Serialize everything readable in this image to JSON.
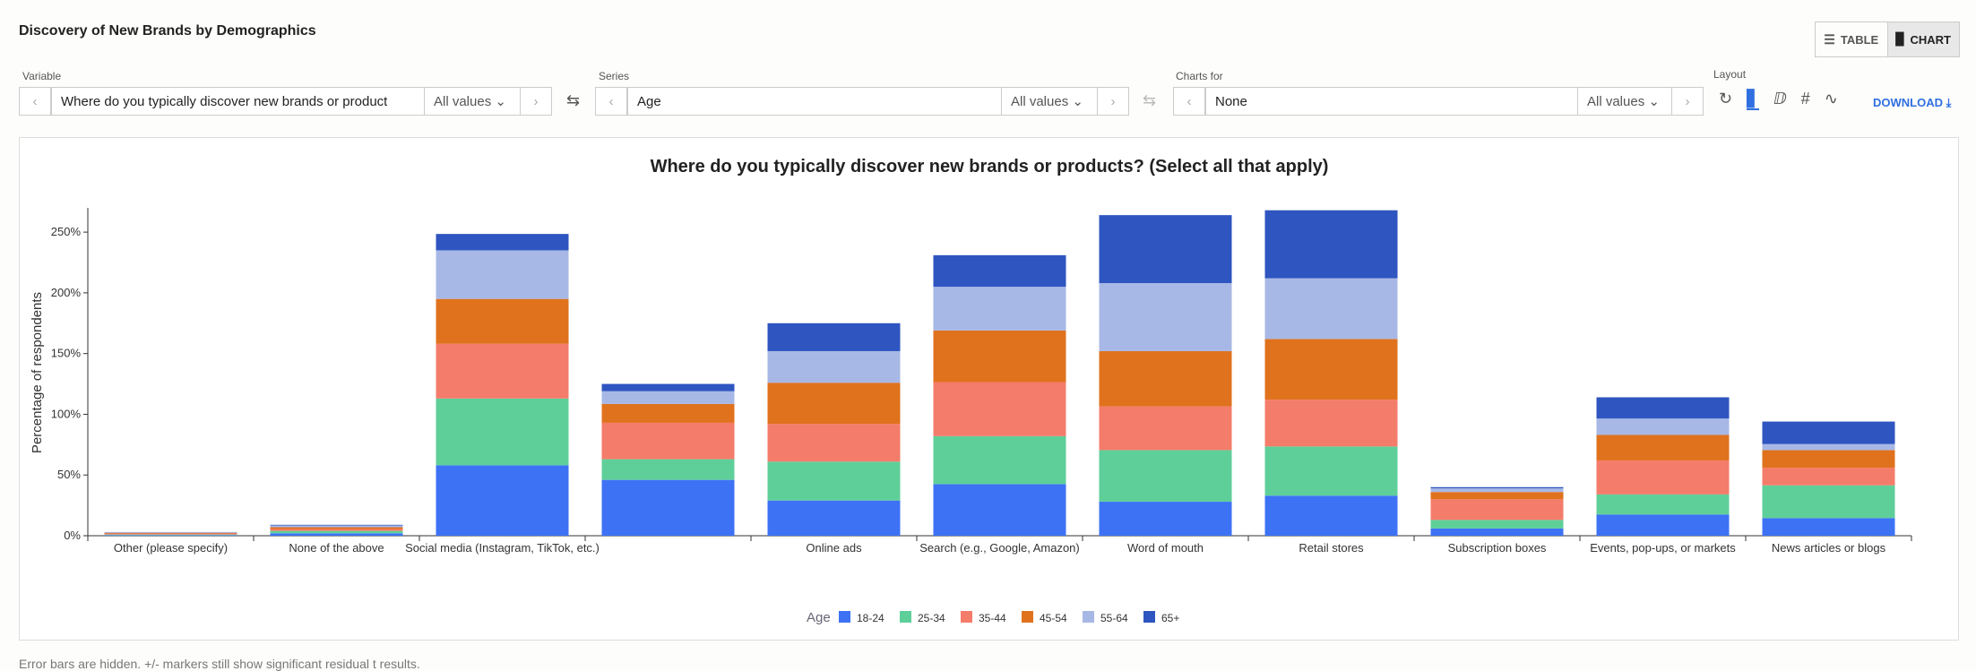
{
  "header": {
    "title": "Discovery of New Brands by Demographics",
    "toggle": [
      "TABLE",
      "CHART"
    ]
  },
  "controls": {
    "variable": {
      "label": "Variable",
      "value": "Where do you typically discover new brands or product",
      "filter": "All values"
    },
    "series": {
      "label": "Series",
      "value": "Age",
      "filter": "All values"
    },
    "charts_for": {
      "label": "Charts for",
      "value": "None",
      "filter": "All values"
    },
    "layout_label": "Layout",
    "download": "DOWNLOAD"
  },
  "chart_data": {
    "type": "stacked_bar",
    "title": "Where do you typically discover new brands or products? (Select all that apply)",
    "y_label": "Percentage of respondents",
    "legend_title": "Age",
    "categories": [
      "Other (please specify)",
      "None of the above",
      "Social media (Instagram, TikTok, etc.)",
      null,
      "Online ads",
      "Search (e.g., Google, Amazon)",
      "Word of mouth",
      "Retail stores",
      "Subscription boxes",
      "Events, pop-ups, or markets",
      "News articles or blogs"
    ],
    "series": [
      {
        "name": "18-24",
        "color": "#3d72f5",
        "values": [
          0.5,
          2,
          58,
          46,
          29,
          42.5,
          28,
          33,
          6,
          17.5,
          14.5
        ]
      },
      {
        "name": "25-34",
        "color": "#5fcf9a",
        "values": [
          0.5,
          2,
          55,
          17,
          32,
          39.5,
          42.5,
          40.5,
          7,
          16.5,
          27
        ]
      },
      {
        "name": "35-44",
        "color": "#f47c6a",
        "values": [
          0.8,
          1.5,
          45,
          30,
          31,
          44.5,
          36,
          38.5,
          17,
          28,
          14.5
        ]
      },
      {
        "name": "45-54",
        "color": "#e0721e",
        "values": [
          0.6,
          1.5,
          37,
          15.5,
          34,
          42.5,
          45.5,
          50,
          6,
          21,
          14.5
        ]
      },
      {
        "name": "55-64",
        "color": "#a8b8e6",
        "values": [
          0.4,
          1.5,
          40,
          10.5,
          26,
          36,
          56,
          50,
          3,
          13.5,
          5
        ]
      },
      {
        "name": "65+",
        "color": "#2e55c0",
        "values": [
          0.2,
          0.5,
          13.5,
          6,
          23,
          26,
          56,
          56,
          1,
          17.5,
          18.5
        ]
      }
    ],
    "ylim": [
      0,
      270
    ],
    "yticks": [
      {
        "value": 0,
        "label": "0%"
      },
      {
        "value": 50,
        "label": "50%"
      },
      {
        "value": 100,
        "label": "100%"
      },
      {
        "value": 150,
        "label": "150%"
      },
      {
        "value": 200,
        "label": "200%"
      },
      {
        "value": 250,
        "label": "250%"
      }
    ]
  },
  "footnote": "Error bars are hidden. +/- markers still show significant residual t results."
}
